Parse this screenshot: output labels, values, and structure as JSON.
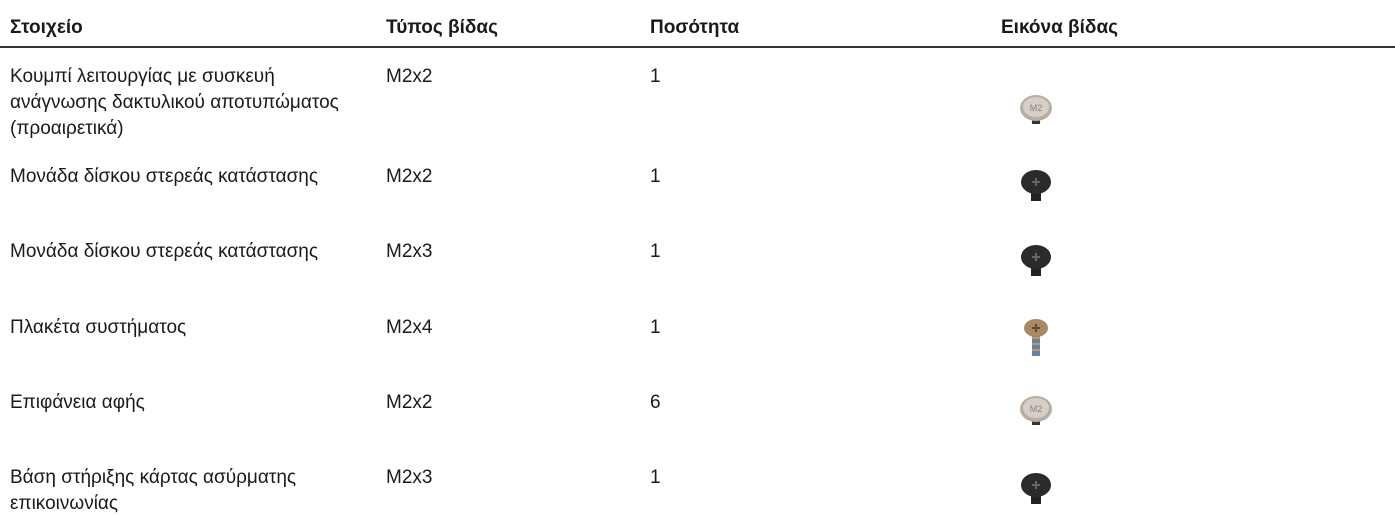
{
  "table": {
    "header": [
      "Στοιχείο",
      "Τύπος βίδας",
      "Ποσότητα",
      "Εικόνα βίδας"
    ],
    "rows": [
      [
        "Κουμπί λειτουργίας με συσκευή ανάγνωσης δακτυλικού αποτυπώματος (προαιρετικά)",
        "M2x2",
        1
      ],
      [
        "Μονάδα δίσκου στερεάς κατάστασης",
        "M2x2",
        1
      ],
      [
        "Μονάδα δίσκου στερεάς κατάστασης",
        "M2x3",
        1
      ],
      [
        "Πλακέτα συστήματος",
        "M2x4",
        1
      ],
      [
        "Επιφάνεια αφής",
        "M2x2",
        6
      ],
      [
        "Βάση στήριξης κάρτας ασύρματης επικοινωνίας",
        "M2x3",
        1
      ]
    ]
  }
}
